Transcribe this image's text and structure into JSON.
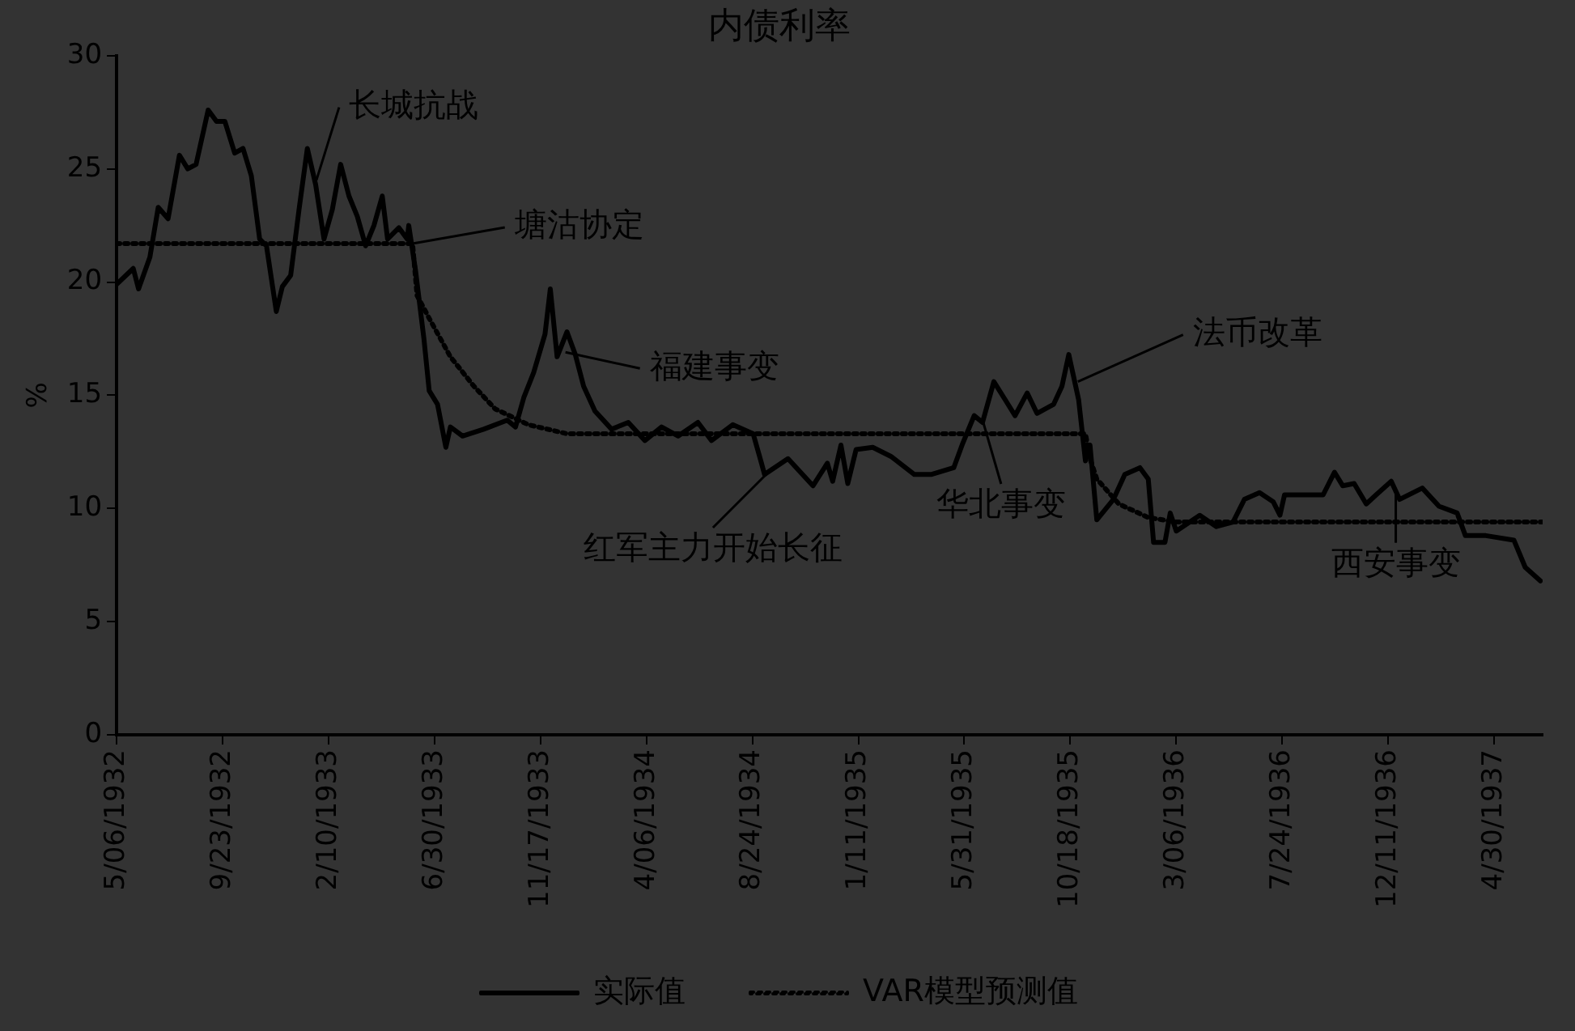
{
  "chart_data": {
    "type": "line",
    "title": "内债利率",
    "ylabel": "%",
    "ylim": [
      0,
      30
    ],
    "yticks": [
      0,
      5,
      10,
      15,
      20,
      25,
      30
    ],
    "xlim": [
      "1932-05-06",
      "1937-07-03"
    ],
    "xticks": [
      {
        "value": "1932-05-06",
        "label": "5/06/1932"
      },
      {
        "value": "1932-09-23",
        "label": "9/23/1932"
      },
      {
        "value": "1933-02-10",
        "label": "2/10/1933"
      },
      {
        "value": "1933-06-30",
        "label": "6/30/1933"
      },
      {
        "value": "1933-11-17",
        "label": "11/17/1933"
      },
      {
        "value": "1934-04-06",
        "label": "4/06/1934"
      },
      {
        "value": "1934-08-24",
        "label": "8/24/1934"
      },
      {
        "value": "1935-01-11",
        "label": "1/11/1935"
      },
      {
        "value": "1935-05-31",
        "label": "5/31/1935"
      },
      {
        "value": "1935-10-18",
        "label": "10/18/1935"
      },
      {
        "value": "1936-03-06",
        "label": "3/06/1936"
      },
      {
        "value": "1936-07-24",
        "label": "7/24/1936"
      },
      {
        "value": "1936-12-11",
        "label": "12/11/1936"
      },
      {
        "value": "1937-04-30",
        "label": "4/30/1937"
      }
    ],
    "grid": false,
    "legend": "bottom",
    "marker": "none",
    "series": [
      {
        "name": "实际值",
        "color": "#000000",
        "line_style": "solid",
        "x": [
          "1932-05-06",
          "1932-05-28",
          "1932-06-04",
          "1932-06-19",
          "1932-06-30",
          "1932-07-13",
          "1932-07-28",
          "1932-08-08",
          "1932-08-19",
          "1932-09-04",
          "1932-09-15",
          "1932-09-26",
          "1932-10-09",
          "1932-10-20",
          "1932-10-31",
          "1932-11-11",
          "1932-11-20",
          "1932-12-03",
          "1932-12-11",
          "1932-12-22",
          "1933-01-02",
          "1933-01-13",
          "1933-01-24",
          "1933-02-04",
          "1933-02-15",
          "1933-02-26",
          "1933-03-09",
          "1933-03-20",
          "1933-03-31",
          "1933-04-11",
          "1933-04-22",
          "1933-04-29",
          "1933-05-14",
          "1933-05-25",
          "1933-05-27",
          "1933-06-05",
          "1933-06-16",
          "1933-06-23",
          "1933-07-04",
          "1933-07-15",
          "1933-07-21",
          "1933-08-06",
          "1933-09-03",
          "1933-10-04",
          "1933-10-15",
          "1933-10-26",
          "1933-11-08",
          "1933-11-23",
          "1933-11-30",
          "1933-12-09",
          "1933-12-22",
          "1934-01-02",
          "1934-01-13",
          "1934-01-28",
          "1934-02-19",
          "1934-03-13",
          "1934-04-04",
          "1934-04-26",
          "1934-05-18",
          "1934-06-13",
          "1934-07-01",
          "1934-07-29",
          "1934-08-25",
          "1934-09-05",
          "1934-09-09",
          "1934-10-10",
          "1934-11-12",
          "1934-12-01",
          "1934-12-08",
          "1934-12-19",
          "1934-12-28",
          "1935-01-08",
          "1935-01-30",
          "1935-02-23",
          "1935-03-26",
          "1935-04-17",
          "1935-05-17",
          "1935-05-28",
          "1935-06-13",
          "1935-06-24",
          "1935-07-09",
          "1935-07-24",
          "1935-08-06",
          "1935-08-22",
          "1935-09-04",
          "1935-09-26",
          "1935-10-07",
          "1935-10-16",
          "1935-10-29",
          "1935-11-07",
          "1935-11-13",
          "1935-11-22",
          "1935-12-14",
          "1935-12-29",
          "1936-01-18",
          "1936-01-29",
          "1936-02-05",
          "1936-02-20",
          "1936-02-27",
          "1936-03-06",
          "1936-04-06",
          "1936-04-28",
          "1936-05-20",
          "1936-06-04",
          "1936-06-24",
          "1936-07-12",
          "1936-07-21",
          "1936-07-27",
          "1936-09-16",
          "1936-10-01",
          "1936-10-12",
          "1936-10-27",
          "1936-11-12",
          "1936-11-25",
          "1936-12-15",
          "1936-12-26",
          "1937-01-25",
          "1937-02-16",
          "1937-03-12",
          "1937-03-23",
          "1937-04-19",
          "1937-05-26",
          "1937-06-10",
          "1937-06-30"
        ],
        "values": [
          19.9,
          20.6,
          19.7,
          21.1,
          23.3,
          22.8,
          25.6,
          25.0,
          25.2,
          27.6,
          27.1,
          27.1,
          25.7,
          25.9,
          24.7,
          21.9,
          21.6,
          18.7,
          19.8,
          20.3,
          23.2,
          25.9,
          24.3,
          21.9,
          23.2,
          25.2,
          23.8,
          22.9,
          21.6,
          22.5,
          23.8,
          21.9,
          22.4,
          21.9,
          22.5,
          20.5,
          17.5,
          15.2,
          14.6,
          12.7,
          13.6,
          13.2,
          13.5,
          13.9,
          13.6,
          14.9,
          16.0,
          17.7,
          19.7,
          16.7,
          17.8,
          16.8,
          15.4,
          14.3,
          13.5,
          13.8,
          13.0,
          13.6,
          13.2,
          13.8,
          13.0,
          13.7,
          13.3,
          12.0,
          11.5,
          12.2,
          11.0,
          12.0,
          11.2,
          12.8,
          11.1,
          12.6,
          12.7,
          12.3,
          11.5,
          11.5,
          11.8,
          12.8,
          14.1,
          13.8,
          15.6,
          14.8,
          14.1,
          15.1,
          14.2,
          14.6,
          15.4,
          16.8,
          14.8,
          12.1,
          12.8,
          9.5,
          10.4,
          11.5,
          11.8,
          11.3,
          8.5,
          8.5,
          9.8,
          9.0,
          9.7,
          9.2,
          9.4,
          10.4,
          10.7,
          10.3,
          9.7,
          10.6,
          10.6,
          11.6,
          11.0,
          11.1,
          10.2,
          10.6,
          11.2,
          10.4,
          10.9,
          10.1,
          9.8,
          8.8,
          8.8,
          8.6,
          7.4,
          6.8
        ]
      },
      {
        "name": "VAR模型预测值",
        "color": "#000000",
        "line_style": "dotted",
        "x": [
          "1932-05-06",
          "1933-06-01",
          "1933-06-07",
          "1933-06-23",
          "1933-07-21",
          "1933-08-21",
          "1933-09-18",
          "1933-11-01",
          "1933-12-22",
          "1935-11-07",
          "1935-11-13",
          "1935-11-22",
          "1935-12-21",
          "1936-01-29",
          "1936-03-06",
          "1937-07-03"
        ],
        "values": [
          21.7,
          21.7,
          19.4,
          18.4,
          16.7,
          15.4,
          14.4,
          13.7,
          13.3,
          13.3,
          12.2,
          11.3,
          10.2,
          9.6,
          9.4,
          9.4
        ]
      }
    ],
    "annotations": [
      {
        "text": "长城抗战",
        "x": "1933-01-25",
        "y": 24.5
      },
      {
        "text": "塘沽协定",
        "x": "1933-06-01",
        "y": 21.7
      },
      {
        "text": "福建事变",
        "x": "1933-12-20",
        "y": 16.9
      },
      {
        "text": "红军主力开始长征",
        "x": "1934-09-20",
        "y": 11.8
      },
      {
        "text": "华北事变",
        "x": "1935-06-25",
        "y": 13.8
      },
      {
        "text": "法币改革",
        "x": "1935-10-28",
        "y": 15.6
      },
      {
        "text": "西安事变",
        "x": "1936-12-21",
        "y": 10.7
      }
    ]
  }
}
